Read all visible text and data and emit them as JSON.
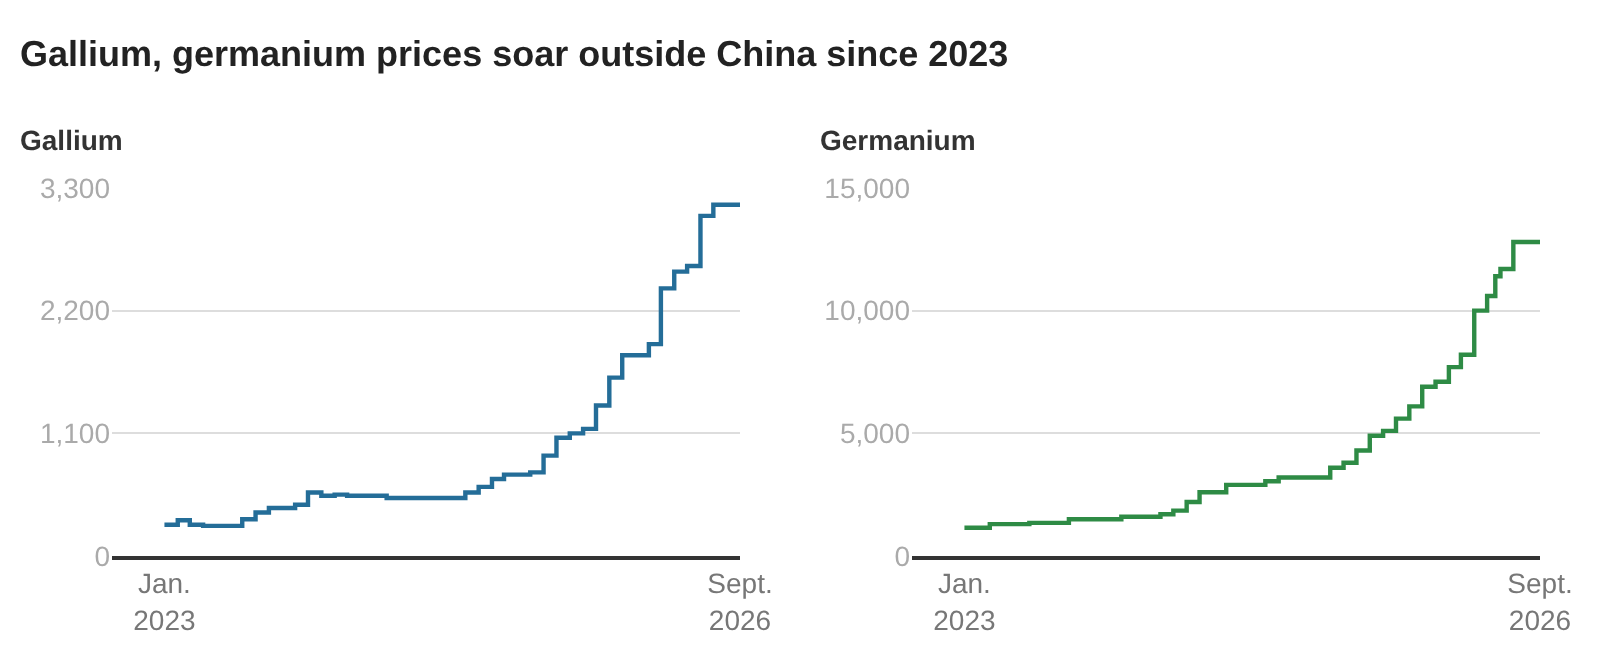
{
  "chart_data": [
    {
      "type": "step",
      "title": "Gallium, germanium prices soar outside China since 2023",
      "subtitle": "Gallium",
      "color": "#246d98",
      "x": [
        "2023-01",
        "2023-02",
        "2023-03",
        "2023-04",
        "2023-07",
        "2023-08",
        "2023-09",
        "2023-11",
        "2023-12",
        "2024-01",
        "2024-02",
        "2024-03",
        "2024-06",
        "2024-12",
        "2025-01",
        "2025-02",
        "2025-03",
        "2025-05",
        "2025-06",
        "2025-07",
        "2025-08",
        "2025-09",
        "2025-10",
        "2025-11",
        "2025-12",
        "2026-02",
        "2026-03",
        "2026-04",
        "2026-05",
        "2026-06",
        "2026-07",
        "2026-09"
      ],
      "values": [
        280,
        320,
        280,
        270,
        330,
        390,
        430,
        460,
        570,
        540,
        550,
        540,
        520,
        570,
        620,
        690,
        730,
        750,
        900,
        1060,
        1100,
        1140,
        1350,
        1600,
        1800,
        1900,
        2400,
        2550,
        2600,
        3050,
        3150,
        3150
      ],
      "xlim": [
        "2022-09-01",
        "2026-09"
      ],
      "xticks": [
        {
          "value": "2023-01",
          "label": "Jan.\n2023"
        },
        {
          "value": "2026-09",
          "label": "Sept.\n2026"
        }
      ],
      "ylim": [
        0,
        3300
      ],
      "yticks": [
        {
          "value": 0,
          "label": "0"
        },
        {
          "value": 1100,
          "label": "1,100"
        },
        {
          "value": 2200,
          "label": "2,200"
        },
        {
          "value": 3300,
          "label": "3,300"
        }
      ],
      "grid": "y"
    },
    {
      "type": "step",
      "subtitle": "Germanium",
      "color": "#2e8b45",
      "x": [
        "2023-01",
        "2023-03",
        "2023-06",
        "2023-09",
        "2024-01",
        "2024-04",
        "2024-05",
        "2024-06",
        "2024-07",
        "2024-09",
        "2024-12",
        "2025-01",
        "2025-05",
        "2025-06",
        "2025-07",
        "2025-08",
        "2025-09",
        "2025-10",
        "2025-11",
        "2025-12",
        "2026-01",
        "2026-02",
        "2026-03",
        "2026-04",
        "2026-05",
        "2026-05-20",
        "2026-06",
        "2026-07",
        "2026-09"
      ],
      "values": [
        1150,
        1300,
        1350,
        1500,
        1600,
        1700,
        1850,
        2200,
        2600,
        2900,
        3050,
        3200,
        3600,
        3800,
        4300,
        4900,
        5100,
        5600,
        6100,
        6900,
        7100,
        7700,
        8200,
        10000,
        10600,
        11400,
        11700,
        12800,
        12800
      ],
      "xlim": [
        "2022-09-01",
        "2026-09"
      ],
      "xticks": [
        {
          "value": "2023-01",
          "label": "Jan.\n2023"
        },
        {
          "value": "2026-09",
          "label": "Sept.\n2026"
        }
      ],
      "ylim": [
        0,
        15000
      ],
      "yticks": [
        {
          "value": 0,
          "label": "0"
        },
        {
          "value": 5000,
          "label": "5,000"
        },
        {
          "value": 10000,
          "label": "10,000"
        },
        {
          "value": 15000,
          "label": "15,000"
        }
      ],
      "grid": "y"
    }
  ]
}
